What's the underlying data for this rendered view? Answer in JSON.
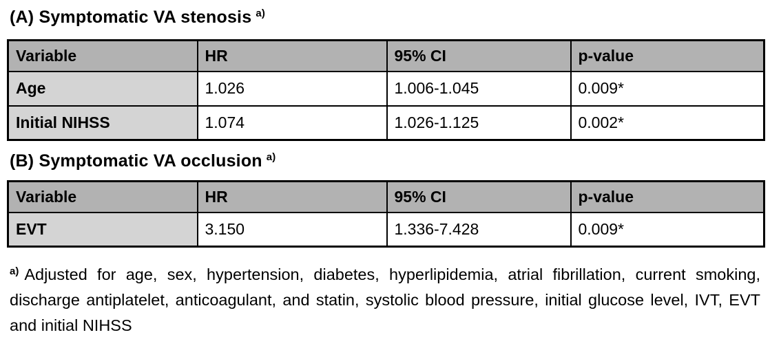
{
  "section_a": {
    "title": "(A) Symptomatic VA stenosis",
    "title_superscript": "a)",
    "table": {
      "headers": [
        "Variable",
        "HR",
        "95% CI",
        "p-value"
      ],
      "rows": [
        {
          "variable": "Age",
          "hr": "1.026",
          "ci": "1.006-1.045",
          "p": "0.009*"
        },
        {
          "variable": "Initial NIHSS",
          "hr": "1.074",
          "ci": "1.026-1.125",
          "p": "0.002*"
        }
      ]
    }
  },
  "section_b": {
    "title": "(B) Symptomatic VA occlusion",
    "title_superscript": "a)",
    "table": {
      "headers": [
        "Variable",
        "HR",
        "95% CI",
        "p-value"
      ],
      "rows": [
        {
          "variable": "EVT",
          "hr": "3.150",
          "ci": "1.336-7.428",
          "p": "0.009*"
        }
      ]
    }
  },
  "footnote": {
    "marker": "a)",
    "text": "Adjusted for age, sex, hypertension, diabetes, hyperlipidemia, atrial fibrillation, current smoking, discharge antiplatelet, anticoagulant, and statin, systolic blood pressure, initial glucose level, IVT, EVT and initial NIHSS"
  },
  "colors": {
    "header_bg": "#b2b2b2",
    "variable_col_bg": "#d4d4d4",
    "cell_bg": "#ffffff",
    "border": "#000000",
    "text": "#000000"
  }
}
